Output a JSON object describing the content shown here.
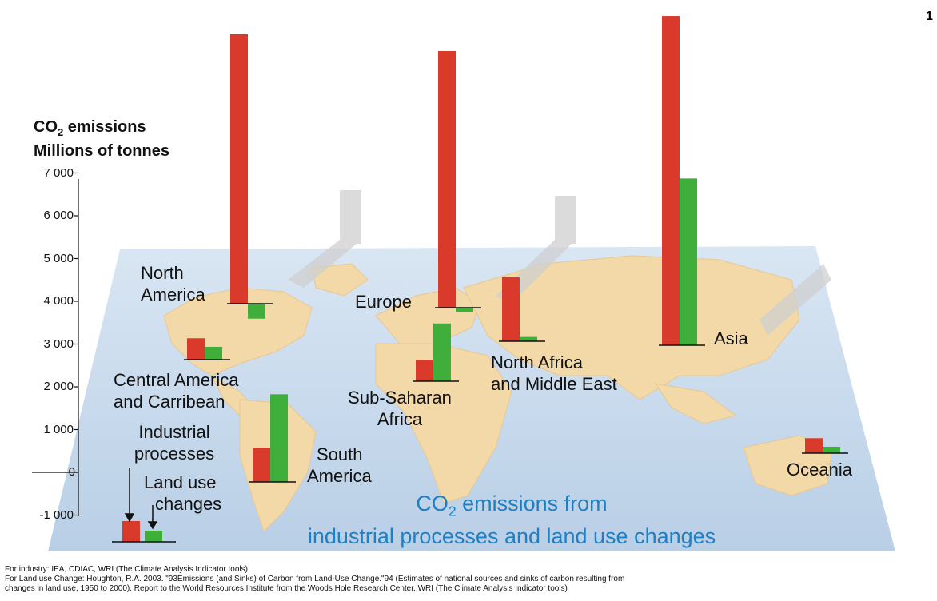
{
  "page_number": "1",
  "chart_data": {
    "type": "bar",
    "title_line1_prefix": "CO",
    "title_line1_sub": "2",
    "title_line1_suffix": " emissions from",
    "title_line2": "industrial processes and land use changes",
    "ylabel_line1_prefix": "CO",
    "ylabel_line1_sub": "2",
    "ylabel_line1_suffix": " emissions",
    "ylabel_line2": "Millions of tonnes",
    "ylim": [
      -1000,
      7000
    ],
    "yticks": [
      {
        "value": 7000,
        "label": "7 000"
      },
      {
        "value": 6000,
        "label": "6 000"
      },
      {
        "value": 5000,
        "label": "5 000"
      },
      {
        "value": 4000,
        "label": "4 000"
      },
      {
        "value": 3000,
        "label": "3 000"
      },
      {
        "value": 2000,
        "label": "2 000"
      },
      {
        "value": 1000,
        "label": "1 000"
      },
      {
        "value": 0,
        "label": "0"
      },
      {
        "value": -1000,
        "label": "-1 000"
      }
    ],
    "legend": {
      "industrial": {
        "label_line1": "Industrial",
        "label_line2": "processes",
        "color": "#d93a2b"
      },
      "land_use": {
        "label_line1": "Land use",
        "label_line2": "changes",
        "color": "#3fae3a"
      }
    },
    "categories": [
      {
        "label_line1": "North",
        "label_line2": "America",
        "industrial": 6300,
        "land_use": -350
      },
      {
        "label_line1": "Central America",
        "label_line2": "and Carribean",
        "industrial": 500,
        "land_use": 300
      },
      {
        "label_line1": "South",
        "label_line2": "America",
        "industrial": 800,
        "land_use": 2050
      },
      {
        "label_line1": "Europe",
        "label_line2": "",
        "industrial": 6000,
        "land_use": -100
      },
      {
        "label_line1": "Sub-Saharan",
        "label_line2": "Africa",
        "industrial": 500,
        "land_use": 1350
      },
      {
        "label_line1": "North Africa",
        "label_line2": "and Middle East",
        "industrial": 1500,
        "land_use": 100
      },
      {
        "label_line1": "Asia",
        "label_line2": "",
        "industrial": 7700,
        "land_use": 3900
      },
      {
        "label_line1": "Oceania",
        "label_line2": "",
        "industrial": 350,
        "land_use": 150
      }
    ]
  },
  "sources": {
    "line1": "For industry: IEA, CDIAC, WRI (The Climate Analysis Indicator tools)",
    "line2": "For Land use Change: Houghton, R.A. 2003. \"93Emissions (and Sinks) of Carbon from Land-Use Change.\"94 (Estimates of national sources and sinks of carbon resulting from",
    "line3": "changes in land use, 1950 to 2000). Report to the World Resources Institute from the Woods Hole Research Center. WRI (The Climate Analysis Indicator tools)"
  }
}
